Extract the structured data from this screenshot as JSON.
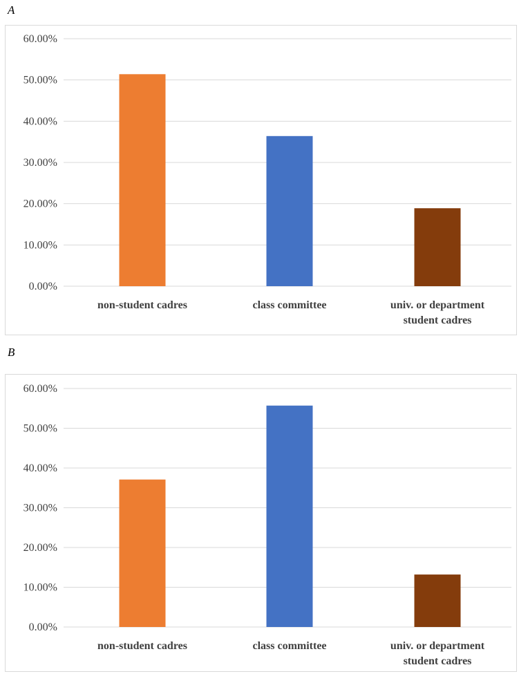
{
  "chart_data": [
    {
      "type": "bar",
      "panel_label": "A",
      "categories": [
        "non-student cadres",
        "class committee",
        "univ. or department student cadres"
      ],
      "category_lines": [
        [
          "non-student cadres"
        ],
        [
          "class committee"
        ],
        [
          "univ. or department",
          "student cadres"
        ]
      ],
      "values": [
        51.4,
        36.4,
        18.9
      ],
      "colors": [
        "#ed7d31",
        "#4472c4",
        "#843c0c"
      ],
      "ylim": [
        0,
        60
      ],
      "yticks": [
        "0.00%",
        "10.00%",
        "20.00%",
        "30.00%",
        "40.00%",
        "50.00%",
        "60.00%"
      ],
      "grid": true,
      "legend": "none"
    },
    {
      "type": "bar",
      "panel_label": "B",
      "categories": [
        "non-student cadres",
        "class committee",
        "univ. or department student cadres"
      ],
      "category_lines": [
        [
          "non-student cadres"
        ],
        [
          "class committee"
        ],
        [
          "univ. or department",
          "student cadres"
        ]
      ],
      "values": [
        37.1,
        55.7,
        13.2
      ],
      "colors": [
        "#ed7d31",
        "#4472c4",
        "#843c0c"
      ],
      "ylim": [
        0,
        60
      ],
      "yticks": [
        "0.00%",
        "10.00%",
        "20.00%",
        "30.00%",
        "40.00%",
        "50.00%",
        "60.00%"
      ],
      "grid": true,
      "legend": "none"
    }
  ]
}
